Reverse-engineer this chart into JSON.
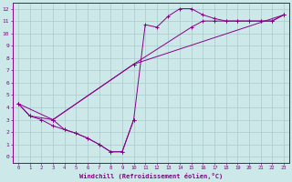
{
  "xlabel": "Windchill (Refroidissement éolien,°C)",
  "bg_color": "#cce8e8",
  "line_color": "#880088",
  "grid_color": "#aacccc",
  "xlim": [
    -0.5,
    23.5
  ],
  "ylim": [
    -0.5,
    12.5
  ],
  "xticks": [
    0,
    1,
    2,
    3,
    4,
    5,
    6,
    7,
    8,
    9,
    10,
    11,
    12,
    13,
    14,
    15,
    16,
    17,
    18,
    19,
    20,
    21,
    22,
    23
  ],
  "yticks": [
    0,
    1,
    2,
    3,
    4,
    5,
    6,
    7,
    8,
    9,
    10,
    11,
    12
  ],
  "lines": [
    {
      "x": [
        0,
        1,
        2,
        3,
        4,
        5,
        6,
        7,
        8,
        9,
        10,
        11,
        12,
        13,
        14,
        15,
        16,
        17,
        18,
        19,
        20,
        21,
        22,
        23
      ],
      "y": [
        4.3,
        3.3,
        3.0,
        2.5,
        2.2,
        1.9,
        1.5,
        1.0,
        0.4,
        0.4,
        3.0,
        10.7,
        10.5,
        11.4,
        12.0,
        12.0,
        11.5,
        11.2,
        11.0,
        11.0,
        11.0,
        11.0,
        11.0,
        11.5
      ]
    },
    {
      "x": [
        0,
        1,
        3,
        10,
        15,
        16,
        17,
        18,
        19,
        20,
        21,
        22,
        23
      ],
      "y": [
        4.3,
        3.3,
        3.0,
        7.5,
        10.5,
        11.0,
        11.0,
        11.0,
        11.0,
        11.0,
        11.0,
        11.0,
        11.5
      ]
    },
    {
      "x": [
        0,
        3,
        10,
        23
      ],
      "y": [
        4.3,
        3.0,
        7.5,
        11.5
      ]
    },
    {
      "x": [
        3,
        4,
        5,
        6,
        7,
        8,
        9,
        10
      ],
      "y": [
        3.0,
        2.2,
        1.9,
        1.5,
        1.0,
        0.4,
        0.4,
        3.0
      ]
    }
  ]
}
